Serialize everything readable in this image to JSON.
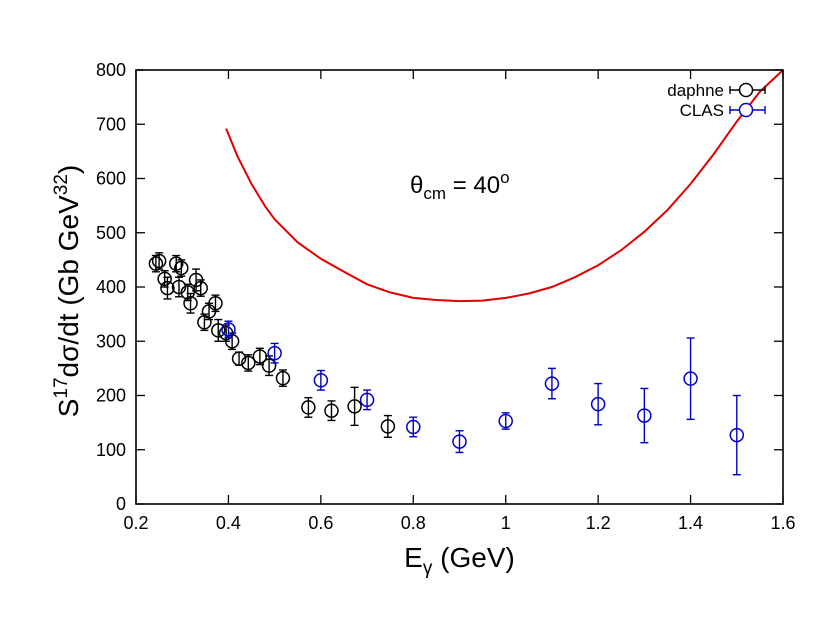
{
  "chart_data": {
    "type": "scatter",
    "xlabel": {
      "main": "E",
      "sub": "γ",
      "rest": " (GeV)"
    },
    "ylabel": {
      "p1": "S",
      "sup1": "17",
      "p2": "dσ/dt (Gb GeV",
      "sup2": "32",
      "p3": ")"
    },
    "xlim": [
      0.2,
      1.6
    ],
    "ylim": [
      0,
      800
    ],
    "xticks": [
      0.2,
      0.4,
      0.6,
      0.8,
      1,
      1.2,
      1.4,
      1.6
    ],
    "xtick_labels": [
      "0.2",
      "0.4",
      "0.6",
      "0.8",
      "1",
      "1.2",
      "1.4",
      "1.6"
    ],
    "yticks": [
      0,
      100,
      200,
      300,
      400,
      500,
      600,
      700,
      800
    ],
    "ytick_labels": [
      "0",
      "100",
      "200",
      "300",
      "400",
      "500",
      "600",
      "700",
      "800"
    ],
    "grid": false,
    "legend_position": "top-right",
    "annotation": {
      "theta": "θ",
      "sub": "cm",
      "eq": " = 40",
      "sup": "o"
    },
    "series": [
      {
        "name": "daphne",
        "color": "#000000",
        "marker": "open-circle",
        "points": [
          {
            "x": 0.243,
            "y": 443,
            "err": 15
          },
          {
            "x": 0.25,
            "y": 448,
            "err": 15
          },
          {
            "x": 0.262,
            "y": 415,
            "err": 15
          },
          {
            "x": 0.268,
            "y": 398,
            "err": 20
          },
          {
            "x": 0.287,
            "y": 443,
            "err": 15
          },
          {
            "x": 0.293,
            "y": 400,
            "err": 18
          },
          {
            "x": 0.298,
            "y": 435,
            "err": 15
          },
          {
            "x": 0.312,
            "y": 390,
            "err": 15
          },
          {
            "x": 0.318,
            "y": 370,
            "err": 18
          },
          {
            "x": 0.33,
            "y": 413,
            "err": 20
          },
          {
            "x": 0.34,
            "y": 398,
            "err": 15
          },
          {
            "x": 0.348,
            "y": 335,
            "err": 15
          },
          {
            "x": 0.358,
            "y": 355,
            "err": 15
          },
          {
            "x": 0.372,
            "y": 370,
            "err": 15
          },
          {
            "x": 0.378,
            "y": 320,
            "err": 20
          },
          {
            "x": 0.395,
            "y": 315,
            "err": 15
          },
          {
            "x": 0.408,
            "y": 300,
            "err": 15
          },
          {
            "x": 0.423,
            "y": 268,
            "err": 12
          },
          {
            "x": 0.443,
            "y": 260,
            "err": 15
          },
          {
            "x": 0.468,
            "y": 272,
            "err": 15
          },
          {
            "x": 0.488,
            "y": 255,
            "err": 18
          },
          {
            "x": 0.518,
            "y": 232,
            "err": 15
          },
          {
            "x": 0.573,
            "y": 178,
            "err": 18
          },
          {
            "x": 0.623,
            "y": 172,
            "err": 18
          },
          {
            "x": 0.673,
            "y": 180,
            "err": 35
          },
          {
            "x": 0.745,
            "y": 143,
            "err": 20
          }
        ]
      },
      {
        "name": "CLAS",
        "color": "#0000cc",
        "marker": "open-circle",
        "points": [
          {
            "x": 0.4,
            "y": 322,
            "err": 15
          },
          {
            "x": 0.5,
            "y": 278,
            "err": 18
          },
          {
            "x": 0.6,
            "y": 228,
            "err": 18
          },
          {
            "x": 0.7,
            "y": 192,
            "err": 18
          },
          {
            "x": 0.8,
            "y": 142,
            "err": 18
          },
          {
            "x": 0.9,
            "y": 115,
            "err": 20
          },
          {
            "x": 1.0,
            "y": 153,
            "err": 15
          },
          {
            "x": 1.1,
            "y": 222,
            "err": 28
          },
          {
            "x": 1.2,
            "y": 184,
            "err": 38
          },
          {
            "x": 1.3,
            "y": 163,
            "err": 50
          },
          {
            "x": 1.4,
            "y": 231,
            "err": 75
          },
          {
            "x": 1.5,
            "y": 127,
            "err": 73
          }
        ]
      }
    ],
    "curve": {
      "color": "#e00000",
      "type": "line",
      "points": [
        [
          0.395,
          692
        ],
        [
          0.42,
          640
        ],
        [
          0.45,
          590
        ],
        [
          0.48,
          548
        ],
        [
          0.5,
          525
        ],
        [
          0.55,
          482
        ],
        [
          0.6,
          452
        ],
        [
          0.65,
          428
        ],
        [
          0.7,
          405
        ],
        [
          0.75,
          390
        ],
        [
          0.8,
          380
        ],
        [
          0.85,
          376
        ],
        [
          0.9,
          374
        ],
        [
          0.95,
          375
        ],
        [
          1.0,
          380
        ],
        [
          1.05,
          388
        ],
        [
          1.1,
          400
        ],
        [
          1.15,
          418
        ],
        [
          1.2,
          440
        ],
        [
          1.25,
          468
        ],
        [
          1.3,
          502
        ],
        [
          1.35,
          542
        ],
        [
          1.4,
          590
        ],
        [
          1.45,
          645
        ],
        [
          1.5,
          705
        ],
        [
          1.55,
          760
        ],
        [
          1.6,
          800
        ]
      ]
    }
  }
}
